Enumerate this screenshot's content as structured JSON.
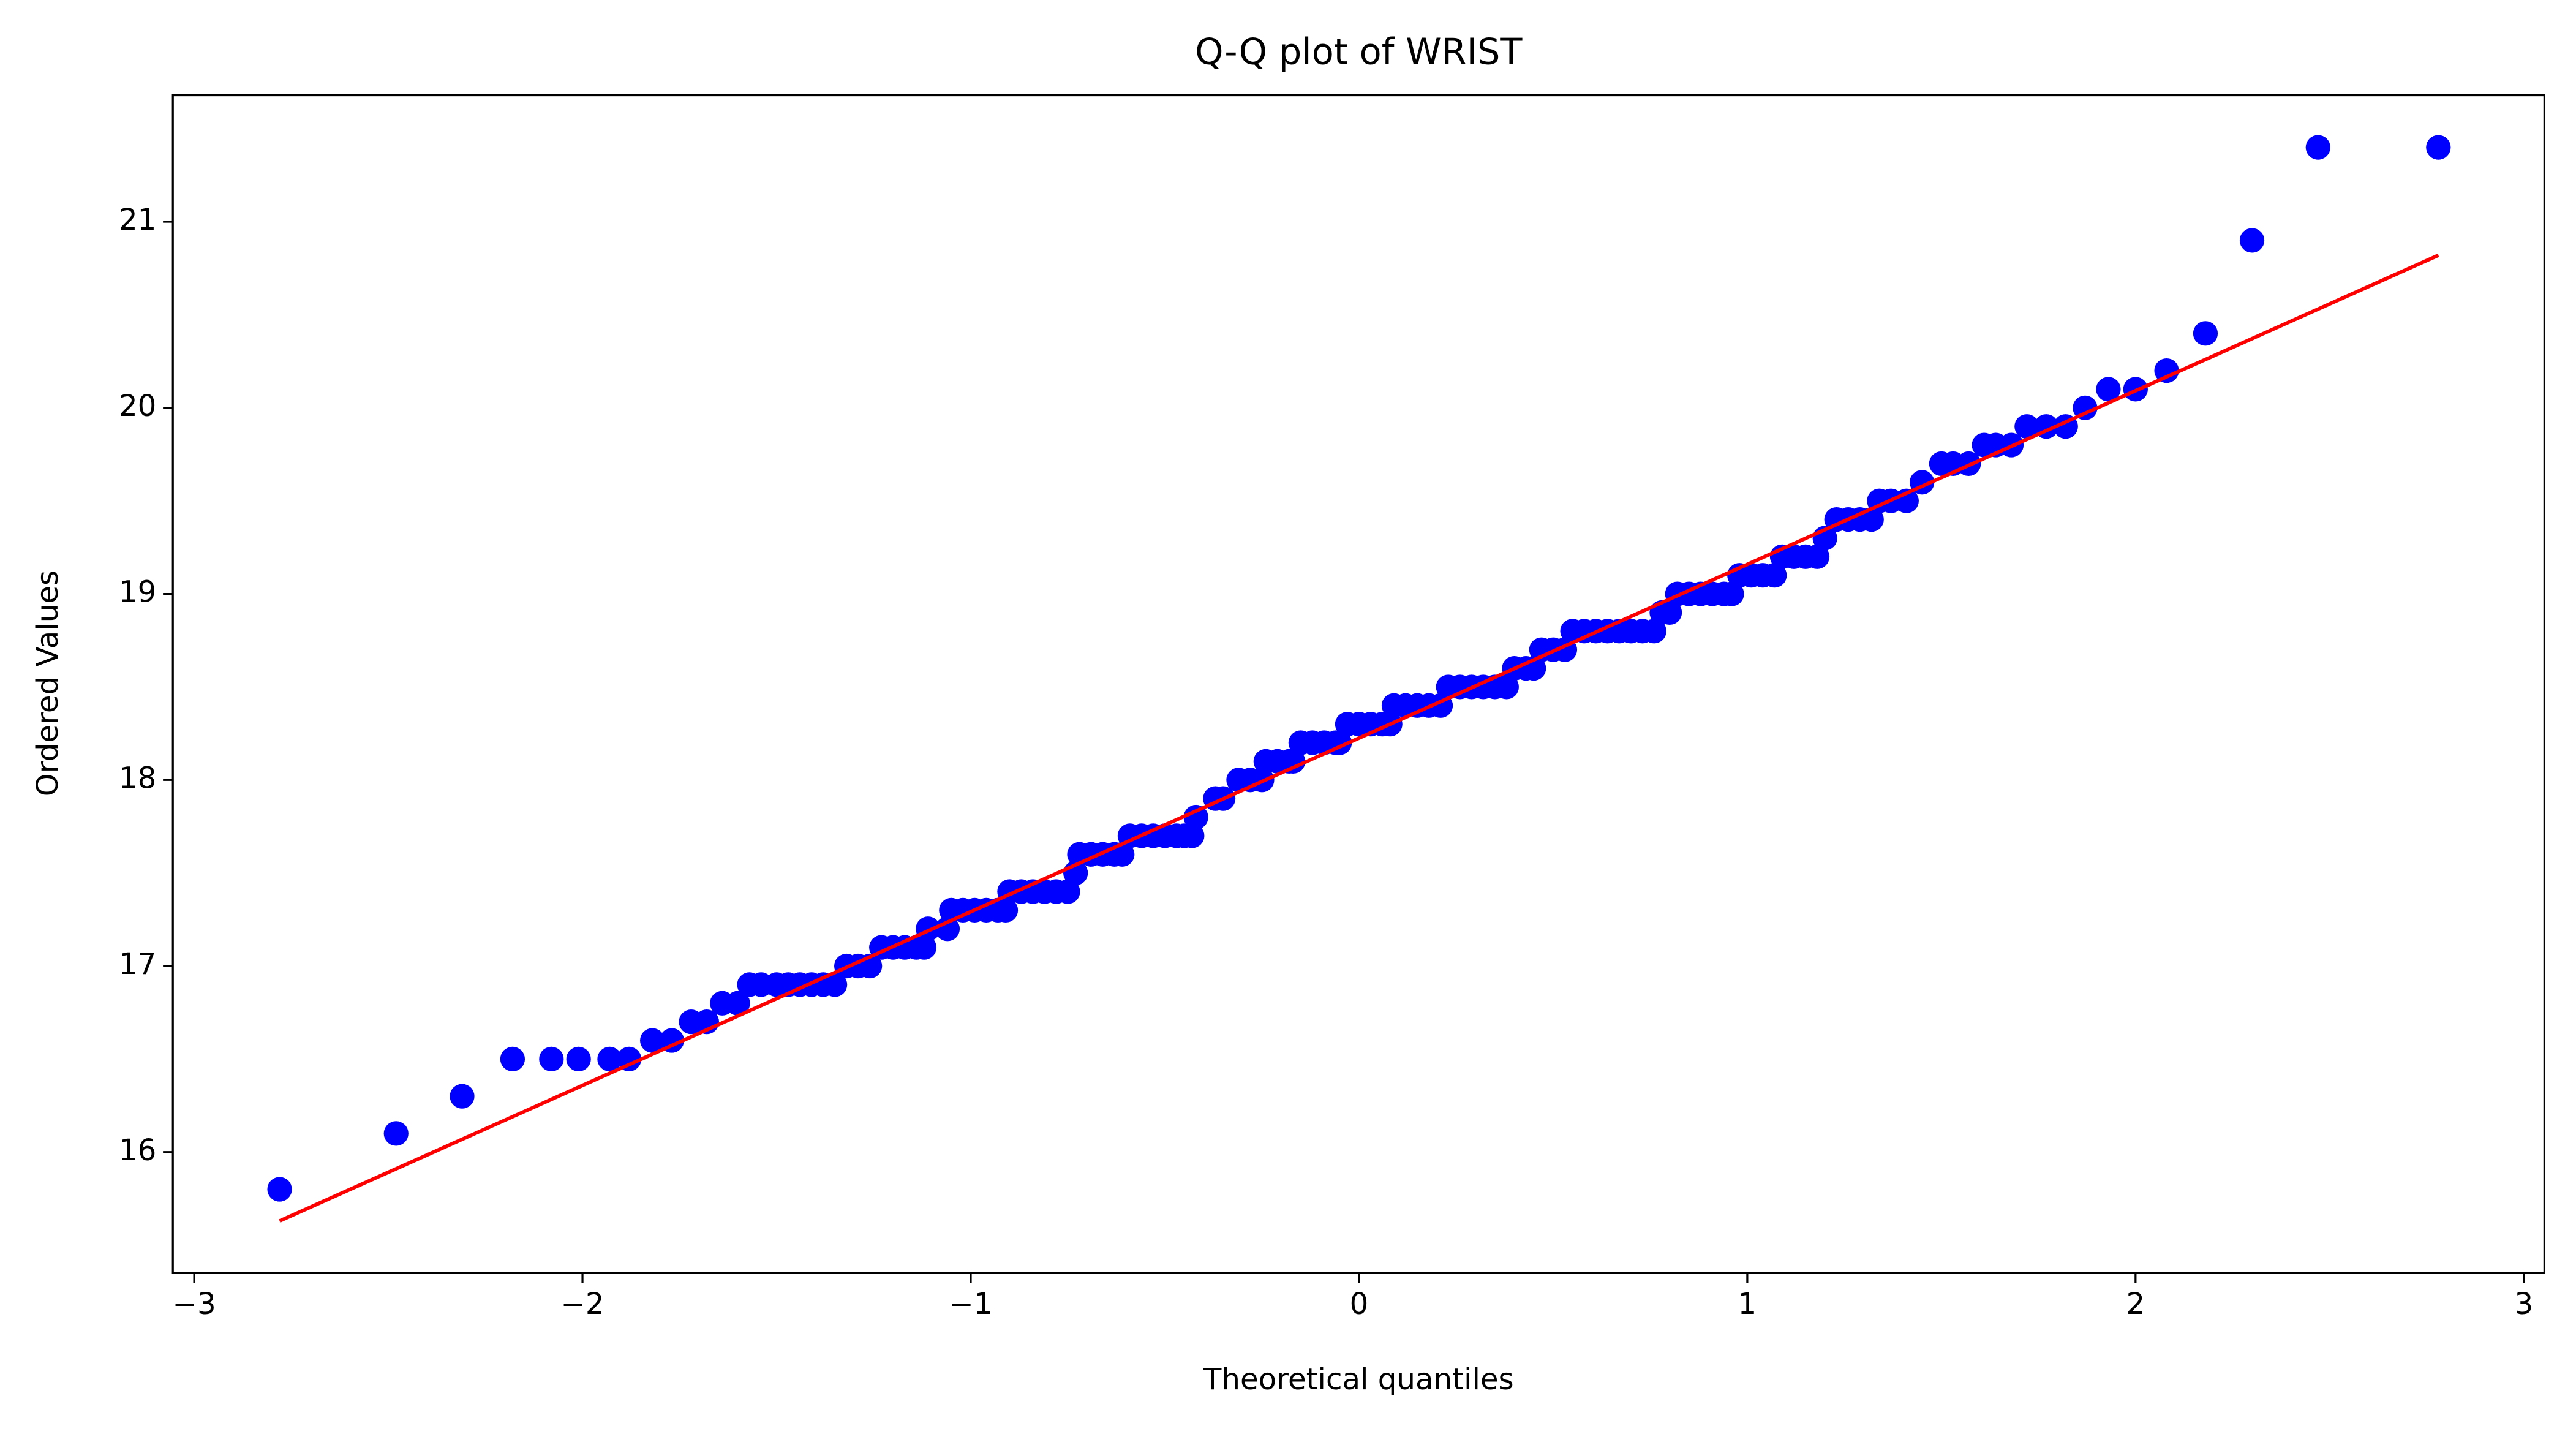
{
  "chart_data": {
    "type": "scatter",
    "title": "Q-Q plot of WRIST",
    "x_label": "Theoretical quantiles",
    "y_label": "Ordered Values",
    "xlim": [
      -3.055,
      3.053
    ],
    "ylim": [
      15.35,
      21.68
    ],
    "xticks": [
      {
        "value": -3,
        "label": "−3"
      },
      {
        "value": -2,
        "label": "−2"
      },
      {
        "value": -1,
        "label": "−1"
      },
      0,
      1,
      2,
      3
    ],
    "yticks": [
      16,
      17,
      18,
      19,
      20,
      21
    ],
    "series": [
      {
        "color": "#0000ff",
        "style": "markers",
        "x": [
          -2.78,
          -2.48,
          -2.31,
          -2.18,
          -2.08,
          -2.01,
          -1.93,
          -1.88,
          -1.82,
          -1.77,
          -1.72,
          -1.68,
          -1.64,
          -1.6,
          -1.57,
          -1.54,
          -1.5,
          -1.47,
          -1.44,
          -1.41,
          -1.38,
          -1.35,
          -1.32,
          -1.29,
          -1.26,
          -1.23,
          -1.2,
          -1.17,
          -1.14,
          -1.12,
          -1.11,
          -1.06,
          -1.05,
          -1.02,
          -0.99,
          -0.96,
          -0.93,
          -0.91,
          -0.9,
          -0.87,
          -0.84,
          -0.81,
          -0.78,
          -0.75,
          -0.73,
          -0.72,
          -0.69,
          -0.66,
          -0.63,
          -0.61,
          -0.59,
          -0.56,
          -0.53,
          -0.5,
          -0.47,
          -0.45,
          -0.43,
          -0.42,
          -0.37,
          -0.35,
          -0.31,
          -0.28,
          -0.25,
          -0.24,
          -0.21,
          -0.18,
          -0.17,
          -0.15,
          -0.12,
          -0.09,
          -0.06,
          -0.05,
          -0.03,
          0.0,
          0.03,
          0.06,
          0.08,
          0.09,
          0.12,
          0.15,
          0.18,
          0.21,
          0.23,
          0.26,
          0.29,
          0.32,
          0.35,
          0.38,
          0.4,
          0.43,
          0.45,
          0.47,
          0.5,
          0.53,
          0.55,
          0.58,
          0.61,
          0.64,
          0.67,
          0.7,
          0.73,
          0.76,
          0.78,
          0.8,
          0.82,
          0.85,
          0.88,
          0.91,
          0.94,
          0.96,
          0.98,
          1.01,
          1.04,
          1.07,
          1.09,
          1.12,
          1.15,
          1.18,
          1.2,
          1.23,
          1.26,
          1.29,
          1.32,
          1.34,
          1.37,
          1.41,
          1.45,
          1.5,
          1.53,
          1.57,
          1.61,
          1.64,
          1.68,
          1.72,
          1.77,
          1.82,
          1.87,
          1.93,
          2.0,
          2.08,
          2.18,
          2.3,
          2.47,
          2.78
        ],
        "values": [
          15.8,
          16.1,
          16.3,
          16.5,
          16.5,
          16.5,
          16.5,
          16.5,
          16.6,
          16.6,
          16.7,
          16.7,
          16.8,
          16.8,
          16.9,
          16.9,
          16.9,
          16.9,
          16.9,
          16.9,
          16.9,
          16.9,
          17.0,
          17.0,
          17.0,
          17.1,
          17.1,
          17.1,
          17.1,
          17.1,
          17.2,
          17.2,
          17.3,
          17.3,
          17.3,
          17.3,
          17.3,
          17.3,
          17.4,
          17.4,
          17.4,
          17.4,
          17.4,
          17.4,
          17.5,
          17.6,
          17.6,
          17.6,
          17.6,
          17.6,
          17.7,
          17.7,
          17.7,
          17.7,
          17.7,
          17.7,
          17.7,
          17.8,
          17.9,
          17.9,
          18.0,
          18.0,
          18.0,
          18.1,
          18.1,
          18.1,
          18.1,
          18.2,
          18.2,
          18.2,
          18.2,
          18.2,
          18.3,
          18.3,
          18.3,
          18.3,
          18.3,
          18.4,
          18.4,
          18.4,
          18.4,
          18.4,
          18.5,
          18.5,
          18.5,
          18.5,
          18.5,
          18.5,
          18.6,
          18.6,
          18.6,
          18.7,
          18.7,
          18.7,
          18.8,
          18.8,
          18.8,
          18.8,
          18.8,
          18.8,
          18.8,
          18.8,
          18.9,
          18.9,
          19.0,
          19.0,
          19.0,
          19.0,
          19.0,
          19.0,
          19.1,
          19.1,
          19.1,
          19.1,
          19.2,
          19.2,
          19.2,
          19.2,
          19.3,
          19.4,
          19.4,
          19.4,
          19.4,
          19.5,
          19.5,
          19.5,
          19.6,
          19.7,
          19.7,
          19.7,
          19.8,
          19.8,
          19.8,
          19.9,
          19.9,
          19.9,
          20.0,
          20.1,
          20.1,
          20.2,
          20.4,
          20.9,
          21.4,
          21.4
        ]
      },
      {
        "color": "#ff0000",
        "style": "line",
        "x": [
          -2.78,
          2.78
        ],
        "values": [
          15.63,
          20.82
        ]
      }
    ]
  }
}
